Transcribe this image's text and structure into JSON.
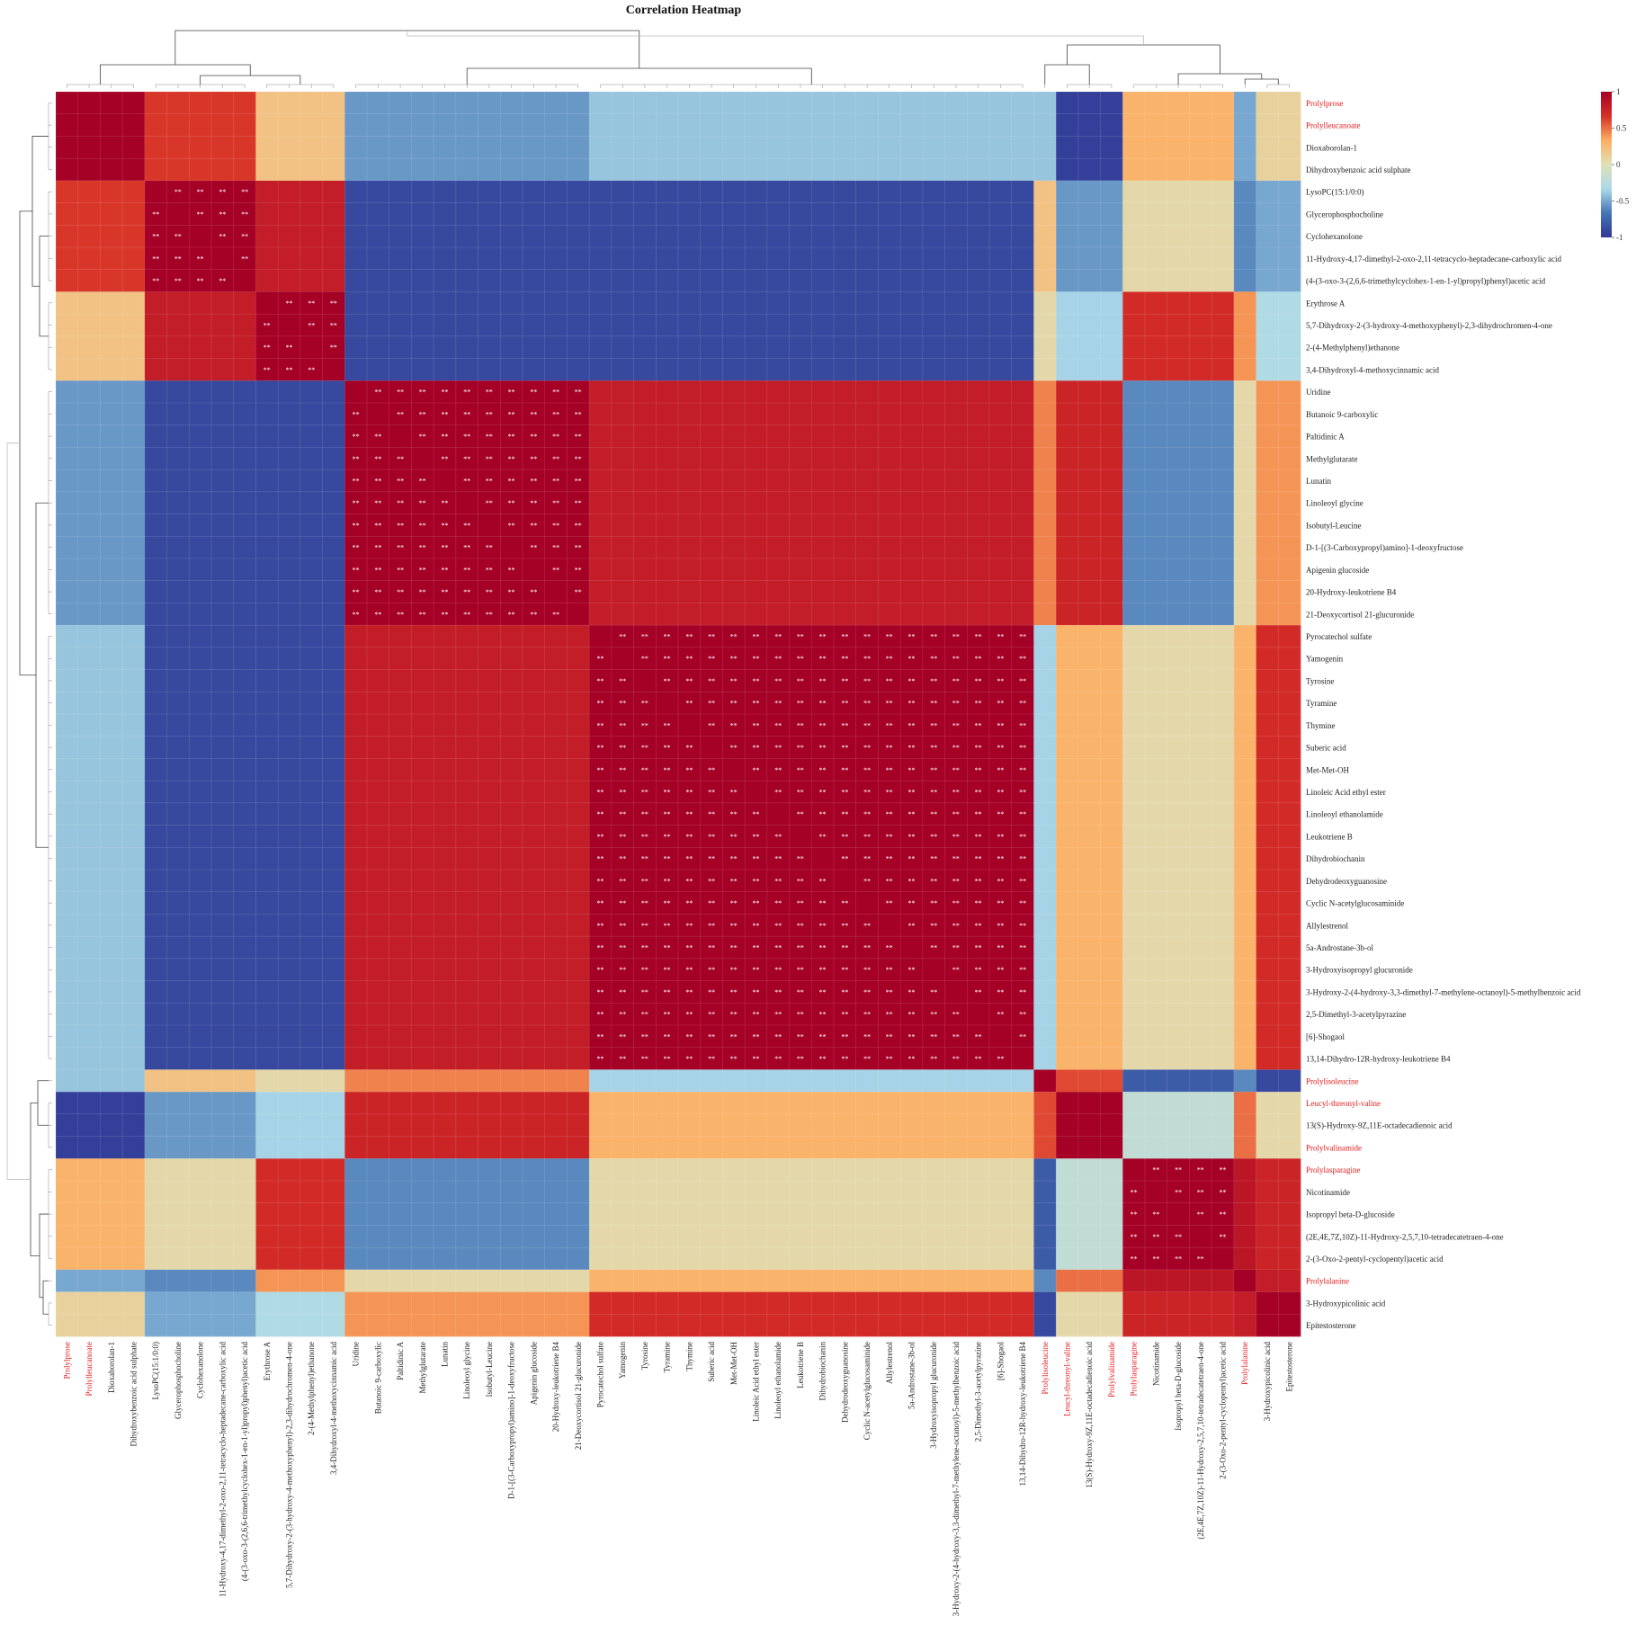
{
  "chart_data": {
    "type": "heatmap",
    "title": "Correlation Heatmap",
    "labels": [
      {
        "text": "Prolylprose",
        "highlight": true
      },
      {
        "text": "Prolylleucanoate",
        "highlight": true
      },
      {
        "text": "Dioxaborolan-1",
        "highlight": false
      },
      {
        "text": "Dihydroxybenzoic acid sulphate",
        "highlight": false
      },
      {
        "text": "LysoPC(15:1/0:0)",
        "highlight": false
      },
      {
        "text": "Glycerophosphocholine",
        "highlight": false
      },
      {
        "text": "Cyclohexanolone",
        "highlight": false
      },
      {
        "text": "11-Hydroxy-4,17-dimethyl-2-oxo-2,11-tetracyclo-heptadecane-carboxylic acid",
        "highlight": false
      },
      {
        "text": "(4-(3-oxo-3-(2,6,6-trimethylcyclohex-1-en-1-yl)propyl)phenyl)acetic acid",
        "highlight": false
      },
      {
        "text": "Erythrose A",
        "highlight": false
      },
      {
        "text": "5,7-Dihydroxy-2-(3-hydroxy-4-methoxyphenyl)-2,3-dihydrochromen-4-one",
        "highlight": false
      },
      {
        "text": "2-(4-Methylphenyl)ethanone",
        "highlight": false
      },
      {
        "text": "3,4-Dihydroxyl-4-methoxycinnamic acid",
        "highlight": false
      },
      {
        "text": "Uridine",
        "highlight": false
      },
      {
        "text": "Butanoic 9-carboxylic",
        "highlight": false
      },
      {
        "text": "Paltidinic A",
        "highlight": false
      },
      {
        "text": "Methylglutarate",
        "highlight": false
      },
      {
        "text": "Lunatin",
        "highlight": false
      },
      {
        "text": "Linoleoyl glycine",
        "highlight": false
      },
      {
        "text": "Isobutyl-Leucine",
        "highlight": false
      },
      {
        "text": "D-1-[(3-Carboxypropyl)amino]-1-deoxyfructose",
        "highlight": false
      },
      {
        "text": "Apigenin glucoside",
        "highlight": false
      },
      {
        "text": "20-Hydroxy-leukotriene B4",
        "highlight": false
      },
      {
        "text": "21-Deoxycortisol 21-glucuronide",
        "highlight": false
      },
      {
        "text": "Pyrocatechol sulfate",
        "highlight": false
      },
      {
        "text": "Yamogenin",
        "highlight": false
      },
      {
        "text": "Tyrosine",
        "highlight": false
      },
      {
        "text": "Tyramine",
        "highlight": false
      },
      {
        "text": "Thymine",
        "highlight": false
      },
      {
        "text": "Suberic acid",
        "highlight": false
      },
      {
        "text": "Met-Met-OH",
        "highlight": false
      },
      {
        "text": "Linoleic Acid ethyl ester",
        "highlight": false
      },
      {
        "text": "Linoleoyl ethanolamide",
        "highlight": false
      },
      {
        "text": "Leukotriene B",
        "highlight": false
      },
      {
        "text": "Dihydrobiochanin",
        "highlight": false
      },
      {
        "text": "Dehydrodeoxyguanosine",
        "highlight": false
      },
      {
        "text": "Cyclic N-acetylglucosaminide",
        "highlight": false
      },
      {
        "text": "Allylestrenol",
        "highlight": false
      },
      {
        "text": "5a-Androstane-3b-ol",
        "highlight": false
      },
      {
        "text": "3-Hydroxyisopropyl glucuronide",
        "highlight": false
      },
      {
        "text": "3-Hydroxy-2-(4-hydroxy-3,3-dimethyl-7-methylene-octanoyl)-5-methylbenzoic acid",
        "highlight": false
      },
      {
        "text": "2,5-Dimethyl-3-acetylpyrazine",
        "highlight": false
      },
      {
        "text": "[6]-Shogaol",
        "highlight": false
      },
      {
        "text": "13,14-Dihydro-12R-hydroxy-leukotriene B4",
        "highlight": false
      },
      {
        "text": "Prolylisoleucine",
        "highlight": true
      },
      {
        "text": "Leucyl-threonyl-valine",
        "highlight": true
      },
      {
        "text": "13(S)-Hydroxy-9Z,11E-octadecadienoic acid",
        "highlight": false
      },
      {
        "text": "Prolylvalinamide",
        "highlight": true
      },
      {
        "text": "Prolylasparagine",
        "highlight": true
      },
      {
        "text": "Nicotinamide",
        "highlight": false
      },
      {
        "text": "Isopropyl beta-D-glucoside",
        "highlight": false
      },
      {
        "text": "(2E,4E,7Z,10Z)-11-Hydroxy-2,5,7,10-tetradecatetraen-4-one",
        "highlight": false
      },
      {
        "text": "2-(3-Oxo-2-pentyl-cyclopentyl)acetic acid",
        "highlight": false
      },
      {
        "text": "Prolylalanine",
        "highlight": true
      },
      {
        "text": "3-Hydroxypicolinic acid",
        "highlight": false
      },
      {
        "text": "Epitestosterone",
        "highlight": false
      }
    ],
    "blocks": [
      {
        "name": "A1",
        "size": 4
      },
      {
        "name": "A2",
        "size": 5
      },
      {
        "name": "A3",
        "size": 4
      },
      {
        "name": "B1",
        "size": 11
      },
      {
        "name": "B2",
        "size": 20
      },
      {
        "name": "C1",
        "size": 1
      },
      {
        "name": "C2",
        "size": 3
      },
      {
        "name": "D1",
        "size": 5
      },
      {
        "name": "D2",
        "size": 1
      },
      {
        "name": "D3",
        "size": 2
      }
    ],
    "block_matrix": [
      [
        1,
        0.65,
        0.2,
        -0.55,
        -0.4,
        -0.4,
        -0.95,
        0.3,
        -0.5,
        0.1
      ],
      [
        0.65,
        1,
        0.8,
        -0.9,
        -0.9,
        0.2,
        -0.55,
        0.05,
        -0.6,
        -0.5
      ],
      [
        0.2,
        0.8,
        1,
        -0.9,
        -0.9,
        0.05,
        -0.35,
        0.7,
        0.4,
        -0.3
      ],
      [
        -0.55,
        -0.9,
        -0.9,
        1,
        0.8,
        0.45,
        0.75,
        -0.6,
        0.05,
        0.4
      ],
      [
        -0.4,
        -0.9,
        -0.9,
        0.8,
        1,
        -0.35,
        0.3,
        0.05,
        0.3,
        0.7
      ],
      [
        -0.4,
        0.2,
        0.05,
        0.45,
        -0.35,
        1,
        0.6,
        -0.8,
        -0.6,
        -0.9
      ],
      [
        -0.95,
        -0.55,
        -0.35,
        0.75,
        0.3,
        0.6,
        1,
        -0.2,
        0.5,
        0.05
      ],
      [
        0.3,
        0.05,
        0.7,
        -0.6,
        0.05,
        -0.8,
        -0.2,
        1,
        0.85,
        0.75
      ],
      [
        -0.5,
        -0.6,
        0.4,
        0.05,
        0.3,
        -0.6,
        0.5,
        0.85,
        1,
        0.8
      ],
      [
        0.1,
        -0.5,
        -0.3,
        0.4,
        0.7,
        -0.9,
        0.05,
        0.75,
        0.8,
        1
      ]
    ],
    "significance_marker": "**",
    "significant_blocks": [
      "A2",
      "A3",
      "B1",
      "B2",
      "D1"
    ],
    "colorscale": {
      "min": -1,
      "max": 1,
      "ticks": [
        "1",
        "0.5",
        "0",
        "-0.5",
        "-1"
      ],
      "colors": [
        "#313695",
        "#4575b4",
        "#abd9e9",
        "#e0e0b8",
        "#fdae61",
        "#d73027",
        "#a50026"
      ],
      "highlight_label_color": "#e41a1c",
      "label_color": "#222222"
    },
    "clustering": "hierarchical (rows and columns)"
  }
}
